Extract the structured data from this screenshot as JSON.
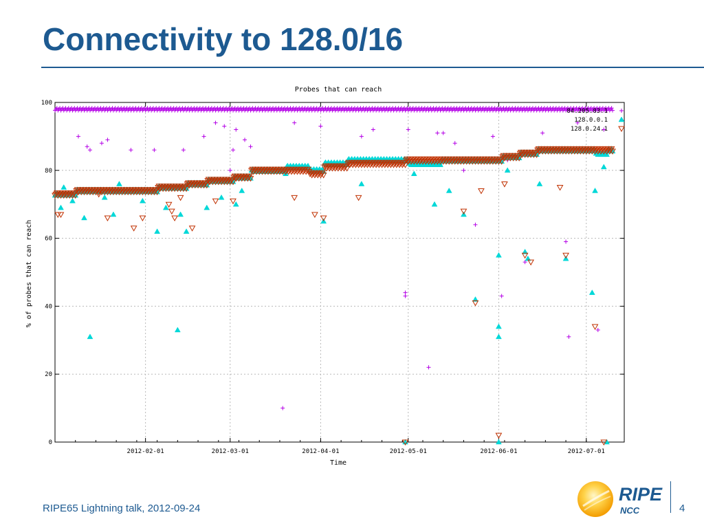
{
  "slide": {
    "title": "Connectivity to 128.0/16",
    "footer": "RIPE65 Lightning talk, 2012-09-24",
    "page_number": "4"
  },
  "logo": {
    "text_main": "RIPE",
    "text_sub": "NCC",
    "colors": {
      "sun_outer": "#f7b500",
      "sun_inner": "#ffe27a",
      "text": "#1d5a91"
    }
  },
  "colors": {
    "title": "#1d5a91",
    "series_a": "#b400e6",
    "series_b": "#00d8d8",
    "series_c": "#c03000",
    "grid": "#b8b8b8"
  },
  "chart_data": {
    "type": "scatter",
    "title": "Probes that can reach",
    "xlabel": "Time",
    "ylabel": "% of probes that can reach",
    "xlim": [
      "2012-01-01",
      "2012-07-14"
    ],
    "ylim": [
      0,
      100
    ],
    "yticks": [
      0,
      20,
      40,
      60,
      80,
      100
    ],
    "xticks": [
      "2012-02-01",
      "2012-03-01",
      "2012-04-01",
      "2012-05-01",
      "2012-06-01",
      "2012-07-01"
    ],
    "grid": true,
    "legend_position": "top-right",
    "series": [
      {
        "name": "84.205.83.1",
        "marker": "plus",
        "baseline": [
          [
            "2012-01-01",
            98
          ],
          [
            "2012-07-14",
            98
          ]
        ],
        "outliers": [
          [
            "2012-01-09",
            90
          ],
          [
            "2012-01-12",
            87
          ],
          [
            "2012-01-13",
            86
          ],
          [
            "2012-01-17",
            88
          ],
          [
            "2012-01-19",
            89
          ],
          [
            "2012-01-27",
            86
          ],
          [
            "2012-02-04",
            86
          ],
          [
            "2012-02-14",
            86
          ],
          [
            "2012-02-21",
            90
          ],
          [
            "2012-02-25",
            94
          ],
          [
            "2012-02-28",
            93
          ],
          [
            "2012-03-01",
            80
          ],
          [
            "2012-03-02",
            86
          ],
          [
            "2012-03-03",
            92
          ],
          [
            "2012-03-06",
            89
          ],
          [
            "2012-03-08",
            87
          ],
          [
            "2012-03-19",
            10
          ],
          [
            "2012-03-23",
            94
          ],
          [
            "2012-04-01",
            93
          ],
          [
            "2012-04-15",
            90
          ],
          [
            "2012-04-19",
            92
          ],
          [
            "2012-04-30",
            43
          ],
          [
            "2012-04-30",
            44
          ],
          [
            "2012-05-01",
            92
          ],
          [
            "2012-05-08",
            22
          ],
          [
            "2012-05-11",
            91
          ],
          [
            "2012-05-13",
            91
          ],
          [
            "2012-05-17",
            88
          ],
          [
            "2012-05-20",
            80
          ],
          [
            "2012-05-24",
            64
          ],
          [
            "2012-05-30",
            90
          ],
          [
            "2012-06-02",
            43
          ],
          [
            "2012-06-04",
            83
          ],
          [
            "2012-06-10",
            53
          ],
          [
            "2012-06-24",
            59
          ],
          [
            "2012-06-25",
            31
          ],
          [
            "2012-07-05",
            33
          ],
          [
            "2012-06-16",
            91
          ],
          [
            "2012-06-28",
            94
          ],
          [
            "2012-07-07",
            92
          ]
        ]
      },
      {
        "name": "128.0.0.1",
        "marker": "triangle-up",
        "baseline": [
          [
            "2012-01-01",
            73
          ],
          [
            "2012-01-08",
            74
          ],
          [
            "2012-02-05",
            75
          ],
          [
            "2012-02-15",
            76
          ],
          [
            "2012-02-22",
            77
          ],
          [
            "2012-03-02",
            78
          ],
          [
            "2012-03-08",
            80
          ],
          [
            "2012-03-20",
            81
          ],
          [
            "2012-03-28",
            80
          ],
          [
            "2012-04-02",
            82
          ],
          [
            "2012-04-10",
            83
          ],
          [
            "2012-04-30",
            83
          ],
          [
            "2012-05-01",
            82
          ],
          [
            "2012-05-12",
            83
          ],
          [
            "2012-05-26",
            83
          ],
          [
            "2012-06-02",
            84
          ],
          [
            "2012-06-08",
            85
          ],
          [
            "2012-06-14",
            86
          ],
          [
            "2012-06-28",
            86
          ],
          [
            "2012-07-04",
            85
          ],
          [
            "2012-07-08",
            86
          ],
          [
            "2012-07-13",
            86
          ]
        ],
        "outliers": [
          [
            "2012-01-03",
            69
          ],
          [
            "2012-01-04",
            75
          ],
          [
            "2012-01-07",
            71
          ],
          [
            "2012-01-11",
            66
          ],
          [
            "2012-01-13",
            31
          ],
          [
            "2012-01-18",
            72
          ],
          [
            "2012-01-21",
            67
          ],
          [
            "2012-01-23",
            76
          ],
          [
            "2012-01-31",
            71
          ],
          [
            "2012-02-05",
            62
          ],
          [
            "2012-02-08",
            69
          ],
          [
            "2012-02-12",
            33
          ],
          [
            "2012-02-13",
            67
          ],
          [
            "2012-02-15",
            62
          ],
          [
            "2012-02-22",
            69
          ],
          [
            "2012-02-27",
            72
          ],
          [
            "2012-03-03",
            70
          ],
          [
            "2012-03-05",
            74
          ],
          [
            "2012-03-20",
            79
          ],
          [
            "2012-04-02",
            65
          ],
          [
            "2012-04-15",
            76
          ],
          [
            "2012-04-30",
            0
          ],
          [
            "2012-05-03",
            79
          ],
          [
            "2012-05-10",
            70
          ],
          [
            "2012-05-15",
            74
          ],
          [
            "2012-05-20",
            67
          ],
          [
            "2012-05-24",
            42
          ],
          [
            "2012-06-01",
            55
          ],
          [
            "2012-06-01",
            34
          ],
          [
            "2012-06-01",
            31
          ],
          [
            "2012-06-01",
            0
          ],
          [
            "2012-06-04",
            80
          ],
          [
            "2012-06-06",
            84
          ],
          [
            "2012-06-10",
            56
          ],
          [
            "2012-06-11",
            54
          ],
          [
            "2012-06-15",
            76
          ],
          [
            "2012-06-24",
            54
          ],
          [
            "2012-07-03",
            44
          ],
          [
            "2012-07-04",
            74
          ],
          [
            "2012-07-07",
            81
          ],
          [
            "2012-07-08",
            0
          ]
        ]
      },
      {
        "name": "128.0.24.1",
        "marker": "triangle-down",
        "baseline": [
          [
            "2012-01-01",
            73
          ],
          [
            "2012-01-08",
            74
          ],
          [
            "2012-02-05",
            75
          ],
          [
            "2012-02-15",
            76
          ],
          [
            "2012-02-22",
            77
          ],
          [
            "2012-03-02",
            78
          ],
          [
            "2012-03-08",
            80
          ],
          [
            "2012-03-20",
            80
          ],
          [
            "2012-03-28",
            79
          ],
          [
            "2012-04-02",
            81
          ],
          [
            "2012-04-10",
            82
          ],
          [
            "2012-04-30",
            83
          ],
          [
            "2012-05-01",
            83
          ],
          [
            "2012-05-12",
            83
          ],
          [
            "2012-05-26",
            83
          ],
          [
            "2012-06-02",
            84
          ],
          [
            "2012-06-08",
            85
          ],
          [
            "2012-06-14",
            86
          ],
          [
            "2012-06-28",
            86
          ],
          [
            "2012-07-04",
            86
          ],
          [
            "2012-07-08",
            86
          ],
          [
            "2012-07-13",
            86
          ]
        ],
        "outliers": [
          [
            "2012-01-02",
            67
          ],
          [
            "2012-01-03",
            67
          ],
          [
            "2012-01-16",
            73
          ],
          [
            "2012-01-19",
            66
          ],
          [
            "2012-01-28",
            63
          ],
          [
            "2012-01-31",
            66
          ],
          [
            "2012-02-09",
            70
          ],
          [
            "2012-02-10",
            68
          ],
          [
            "2012-02-11",
            66
          ],
          [
            "2012-02-13",
            72
          ],
          [
            "2012-02-17",
            63
          ],
          [
            "2012-02-25",
            71
          ],
          [
            "2012-03-02",
            71
          ],
          [
            "2012-03-23",
            72
          ],
          [
            "2012-03-30",
            67
          ],
          [
            "2012-04-02",
            66
          ],
          [
            "2012-04-14",
            72
          ],
          [
            "2012-04-30",
            0
          ],
          [
            "2012-05-20",
            68
          ],
          [
            "2012-05-24",
            41
          ],
          [
            "2012-05-26",
            74
          ],
          [
            "2012-06-01",
            2
          ],
          [
            "2012-06-03",
            76
          ],
          [
            "2012-06-10",
            55
          ],
          [
            "2012-06-12",
            53
          ],
          [
            "2012-06-22",
            75
          ],
          [
            "2012-06-24",
            55
          ],
          [
            "2012-07-04",
            34
          ],
          [
            "2012-07-07",
            0
          ]
        ]
      }
    ]
  }
}
